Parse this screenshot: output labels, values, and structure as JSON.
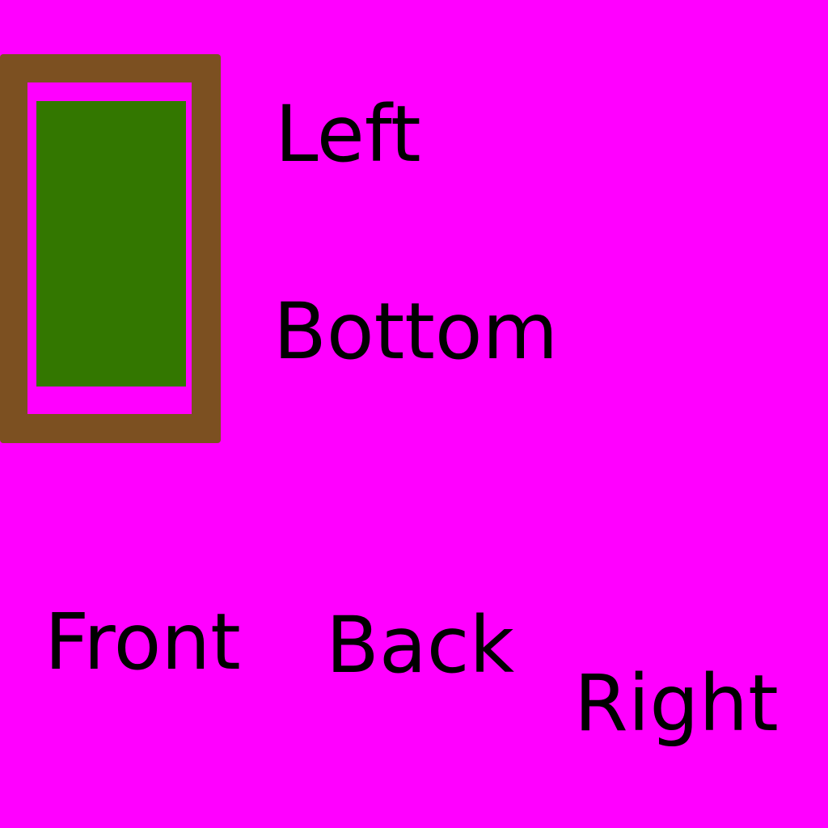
{
  "colors": {
    "background": "#FF00FF",
    "frame": "#7C5021",
    "frame_inner": "#FF00FF",
    "panel": "#337700",
    "text": "#000000"
  },
  "labels": {
    "left": "Left",
    "bottom": "Bottom",
    "front": "Front",
    "back": "Back",
    "right": "Right"
  }
}
